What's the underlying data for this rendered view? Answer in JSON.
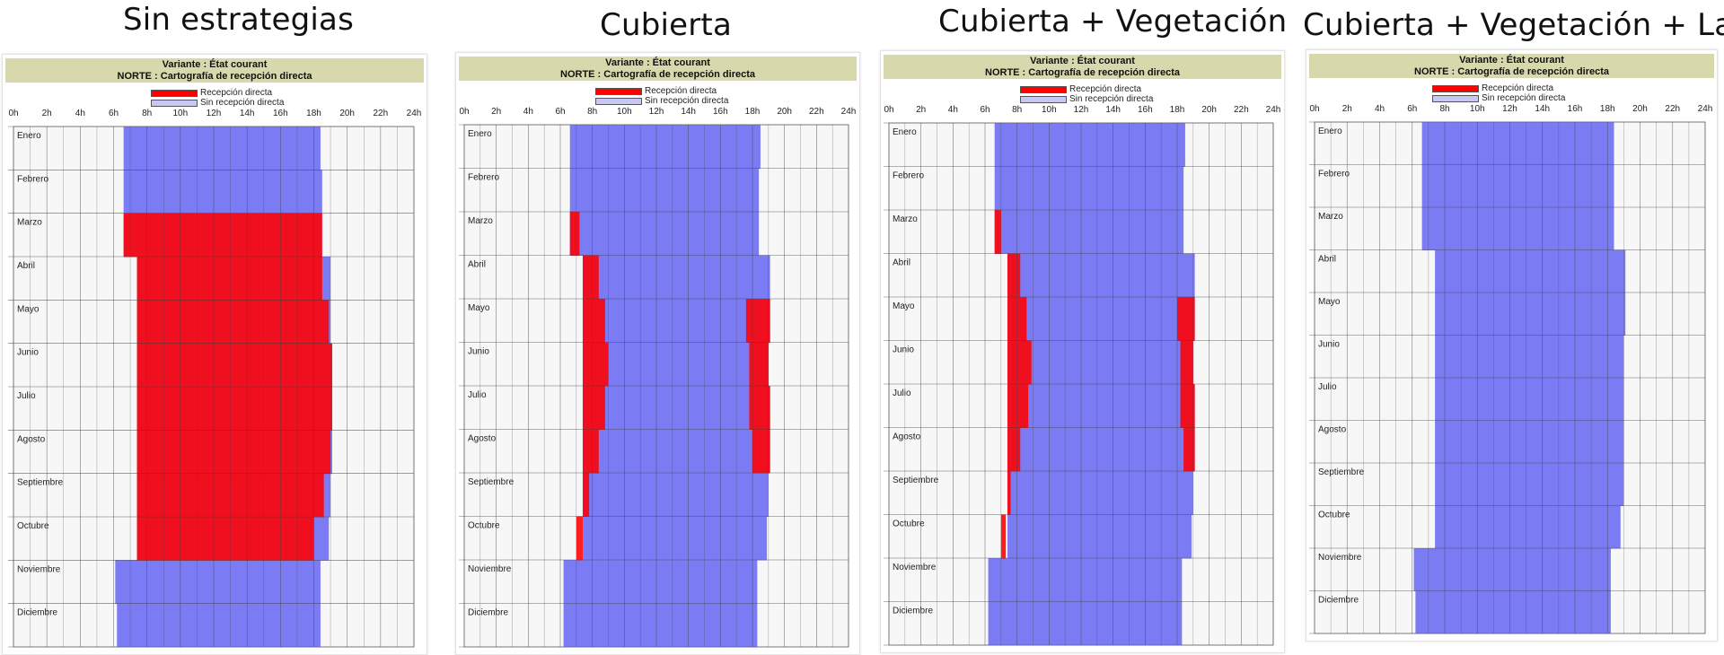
{
  "colors": {
    "direct": "#ff0000",
    "no_direct": "#7b7bf4",
    "header_bg": "#d7d9ad",
    "grid": "#555555"
  },
  "shared": {
    "variant": "Variante : État courant",
    "subtitle": "NORTE : Cartografía de recepción directa",
    "legend_direct": "Recepción directa",
    "legend_no_direct": "Sin recepción directa",
    "hour_ticks": [
      "0h",
      "2h",
      "4h",
      "6h",
      "8h",
      "10h",
      "12h",
      "14h",
      "16h",
      "18h",
      "20h",
      "22h",
      "24h"
    ],
    "months": [
      "Enero",
      "Febrero",
      "Marzo",
      "Abril",
      "Mayo",
      "Junio",
      "Julio",
      "Agosto",
      "Septiembre",
      "Octubre",
      "Noviembre",
      "Diciembre"
    ]
  },
  "panels": [
    {
      "title": "Sin estrategias"
    },
    {
      "title": "Cubierta"
    },
    {
      "title": "Cubierta + Vegetación"
    },
    {
      "title": "Cubierta + Vegetación + Lamas"
    }
  ],
  "chart_data": [
    {
      "type": "heatmap",
      "title": "Sin estrategias",
      "x_axis": "hour",
      "xlim": [
        0,
        24
      ],
      "y_categories": [
        "Enero",
        "Febrero",
        "Marzo",
        "Abril",
        "Mayo",
        "Junio",
        "Julio",
        "Agosto",
        "Septiembre",
        "Octubre",
        "Noviembre",
        "Diciembre"
      ],
      "daylight_hours": [
        [
          6.6,
          18.4
        ],
        [
          6.6,
          18.5
        ],
        [
          6.6,
          18.5
        ],
        [
          7.4,
          19.0
        ],
        [
          7.4,
          19.0
        ],
        [
          7.4,
          19.1
        ],
        [
          7.4,
          19.1
        ],
        [
          7.4,
          19.1
        ],
        [
          7.4,
          19.0
        ],
        [
          7.4,
          18.9
        ],
        [
          6.1,
          18.4
        ],
        [
          6.2,
          18.4
        ]
      ],
      "direct_reception_hours": [
        null,
        null,
        [
          6.6,
          18.5
        ],
        [
          7.4,
          18.5
        ],
        [
          7.4,
          18.9
        ],
        [
          7.4,
          19.1
        ],
        [
          7.4,
          19.1
        ],
        [
          7.4,
          19.0
        ],
        [
          7.4,
          18.6
        ],
        [
          7.4,
          18.0
        ],
        null,
        null
      ]
    },
    {
      "type": "heatmap",
      "title": "Cubierta",
      "x_axis": "hour",
      "xlim": [
        0,
        24
      ],
      "y_categories": [
        "Enero",
        "Febrero",
        "Marzo",
        "Abril",
        "Mayo",
        "Junio",
        "Julio",
        "Agosto",
        "Septiembre",
        "Octubre",
        "Noviembre",
        "Diciembre"
      ],
      "daylight_hours": [
        [
          6.6,
          18.5
        ],
        [
          6.6,
          18.4
        ],
        [
          6.6,
          18.4
        ],
        [
          7.4,
          19.1
        ],
        [
          7.4,
          19.1
        ],
        [
          7.4,
          19.0
        ],
        [
          7.4,
          19.1
        ],
        [
          7.4,
          19.1
        ],
        [
          7.4,
          19.0
        ],
        [
          7.4,
          18.9
        ],
        [
          6.2,
          18.3
        ],
        [
          6.2,
          18.3
        ]
      ],
      "direct_reception_morning": [
        null,
        null,
        [
          6.6,
          7.2
        ],
        [
          7.4,
          8.4
        ],
        [
          7.4,
          8.8
        ],
        [
          7.4,
          9.0
        ],
        [
          7.4,
          8.8
        ],
        [
          7.4,
          8.4
        ],
        [
          7.4,
          7.8
        ],
        [
          7.0,
          7.4
        ],
        null,
        null
      ],
      "direct_reception_evening": [
        null,
        null,
        null,
        null,
        [
          17.6,
          19.1
        ],
        [
          17.8,
          19.0
        ],
        [
          17.8,
          19.1
        ],
        [
          18.0,
          19.1
        ],
        null,
        null,
        null,
        null
      ]
    },
    {
      "type": "heatmap",
      "title": "Cubierta + Vegetación",
      "x_axis": "hour",
      "xlim": [
        0,
        24
      ],
      "y_categories": [
        "Enero",
        "Febrero",
        "Marzo",
        "Abril",
        "Mayo",
        "Junio",
        "Julio",
        "Agosto",
        "Septiembre",
        "Octubre",
        "Noviembre",
        "Diciembre"
      ],
      "daylight_hours": [
        [
          6.6,
          18.5
        ],
        [
          6.6,
          18.4
        ],
        [
          6.6,
          18.4
        ],
        [
          7.4,
          19.1
        ],
        [
          7.4,
          19.1
        ],
        [
          7.4,
          19.0
        ],
        [
          7.4,
          19.1
        ],
        [
          7.4,
          19.1
        ],
        [
          7.4,
          19.0
        ],
        [
          7.4,
          18.9
        ],
        [
          6.2,
          18.3
        ],
        [
          6.2,
          18.3
        ]
      ],
      "direct_reception_morning": [
        null,
        null,
        [
          6.6,
          7.0
        ],
        [
          7.4,
          8.2
        ],
        [
          7.4,
          8.6
        ],
        [
          7.4,
          8.9
        ],
        [
          7.4,
          8.7
        ],
        [
          7.4,
          8.2
        ],
        [
          7.4,
          7.6
        ],
        [
          7.0,
          7.3
        ],
        null,
        null
      ],
      "direct_reception_evening": [
        null,
        null,
        null,
        null,
        [
          18.0,
          19.1
        ],
        [
          18.2,
          19.0
        ],
        [
          18.2,
          19.1
        ],
        [
          18.4,
          19.1
        ],
        null,
        null,
        null,
        null
      ]
    },
    {
      "type": "heatmap",
      "title": "Cubierta + Vegetación + Lamas",
      "x_axis": "hour",
      "xlim": [
        0,
        24
      ],
      "y_categories": [
        "Enero",
        "Febrero",
        "Marzo",
        "Abril",
        "Mayo",
        "Junio",
        "Julio",
        "Agosto",
        "Septiembre",
        "Octubre",
        "Noviembre",
        "Diciembre"
      ],
      "daylight_hours": [
        [
          6.6,
          18.4
        ],
        [
          6.6,
          18.4
        ],
        [
          6.6,
          18.4
        ],
        [
          7.4,
          19.1
        ],
        [
          7.4,
          19.1
        ],
        [
          7.4,
          19.0
        ],
        [
          7.4,
          19.0
        ],
        [
          7.4,
          19.0
        ],
        [
          7.4,
          19.0
        ],
        [
          7.4,
          18.8
        ],
        [
          6.1,
          18.2
        ],
        [
          6.2,
          18.2
        ]
      ],
      "direct_reception_hours": [
        null,
        null,
        null,
        null,
        null,
        null,
        null,
        null,
        null,
        null,
        null,
        null
      ]
    }
  ]
}
